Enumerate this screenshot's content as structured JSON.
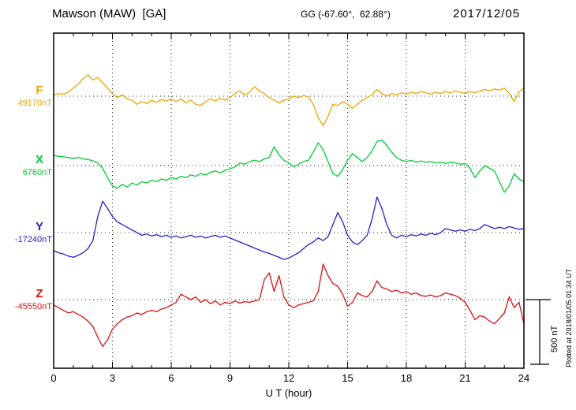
{
  "header": {
    "title": "Mawson (MAW)  [GA]",
    "coords": "GG (-67.60°,  62.88°)",
    "date": "2017/12/05"
  },
  "footer": {
    "xlabel": "U T (hour)"
  },
  "side": {
    "scale_label": "500 nT",
    "plotted_note": "Plotted at 2018/01/05 01:34 UT"
  },
  "chart_data": {
    "type": "line",
    "title": "Mawson (MAW) [GA] magnetogram 2017/12/05",
    "xlabel": "U T (hour)",
    "x_range": [
      0,
      24
    ],
    "x_ticks": [
      0,
      3,
      6,
      9,
      12,
      15,
      18,
      21,
      24
    ],
    "sample_step_hours": 0.25,
    "grid": "dotted vertical lines every 3 h; dotted horizontal baseline per component",
    "legend_position": "left baseline labels",
    "scale_bar_nT": 500,
    "baseline_spacing_nT": 500,
    "series": [
      {
        "name": "F",
        "label": "F",
        "baseline_label": "49170nT",
        "baseline_nT": 49170,
        "color": "#f0a400",
        "offsets_nT": [
          10,
          20,
          15,
          30,
          60,
          90,
          130,
          160,
          120,
          140,
          100,
          60,
          20,
          -10,
          10,
          -20,
          -30,
          -60,
          -40,
          -55,
          -30,
          -45,
          -25,
          -35,
          -20,
          -40,
          -20,
          -50,
          -30,
          -60,
          -70,
          -40,
          -20,
          -35,
          -15,
          -30,
          -10,
          20,
          40,
          10,
          30,
          70,
          40,
          20,
          -10,
          -30,
          -50,
          -30,
          -20,
          0,
          -10,
          5,
          -5,
          -60,
          -160,
          -220,
          -150,
          -60,
          -70,
          -40,
          -60,
          -90,
          -60,
          -30,
          -10,
          10,
          50,
          20,
          0,
          20,
          10,
          25,
          15,
          30,
          20,
          35,
          25,
          15,
          30,
          20,
          35,
          25,
          40,
          30,
          20,
          35,
          25,
          40,
          50,
          40,
          55,
          45,
          60,
          20,
          -40,
          30,
          60
        ]
      },
      {
        "name": "X",
        "label": "X",
        "baseline_label": "6760nT",
        "baseline_nT": 6760,
        "color": "#00cc33",
        "offsets_nT": [
          75,
          70,
          65,
          60,
          55,
          60,
          50,
          45,
          35,
          20,
          -20,
          -90,
          -150,
          -170,
          -140,
          -160,
          -130,
          -145,
          -120,
          -130,
          -110,
          -120,
          -100,
          -110,
          -90,
          -100,
          -80,
          -90,
          -70,
          -80,
          -60,
          -70,
          -50,
          -40,
          -55,
          -35,
          -25,
          -10,
          20,
          10,
          30,
          40,
          30,
          50,
          60,
          140,
          80,
          40,
          20,
          -10,
          10,
          30,
          40,
          100,
          170,
          120,
          30,
          -60,
          -80,
          -30,
          40,
          90,
          60,
          30,
          60,
          110,
          180,
          190,
          150,
          100,
          60,
          40,
          30,
          40,
          25,
          35,
          25,
          30,
          20,
          25,
          15,
          25,
          20,
          10,
          15,
          -20,
          -90,
          -40,
          0,
          -20,
          -40,
          -120,
          -200,
          -150,
          -60,
          -100,
          -120
        ]
      },
      {
        "name": "Y",
        "label": "Y",
        "baseline_label": "-17240nT",
        "baseline_nT": -17240,
        "color": "#2222cc",
        "offsets_nT": [
          -135,
          -150,
          -160,
          -175,
          -185,
          -170,
          -150,
          -120,
          -60,
          120,
          235,
          180,
          120,
          80,
          60,
          40,
          20,
          0,
          -20,
          -10,
          -25,
          -15,
          -30,
          -20,
          -35,
          -25,
          -40,
          -30,
          -20,
          -35,
          -25,
          -40,
          -30,
          -20,
          -35,
          -25,
          -40,
          -55,
          -70,
          -85,
          -100,
          -115,
          -130,
          -145,
          -155,
          -170,
          -185,
          -200,
          -190,
          -170,
          -150,
          -120,
          -90,
          -70,
          -40,
          -60,
          -30,
          60,
          150,
          80,
          -20,
          -70,
          -90,
          -60,
          -20,
          100,
          265,
          180,
          60,
          -20,
          -40,
          -20,
          -30,
          -15,
          -25,
          -10,
          -20,
          -5,
          -15,
          0,
          30,
          20,
          10,
          20,
          10,
          25,
          15,
          30,
          60,
          45,
          30,
          40,
          30,
          45,
          35,
          25,
          30
        ]
      },
      {
        "name": "Z",
        "label": "Z",
        "baseline_label": "-45550nT",
        "baseline_nT": -45550,
        "color": "#dd1111",
        "offsets_nT": [
          -40,
          -60,
          -80,
          -100,
          -90,
          -110,
          -130,
          -160,
          -200,
          -280,
          -350,
          -300,
          -220,
          -180,
          -150,
          -130,
          -120,
          -100,
          -110,
          -90,
          -80,
          -90,
          -70,
          -60,
          -40,
          -20,
          40,
          20,
          0,
          20,
          -20,
          0,
          -30,
          -10,
          -40,
          -20,
          -30,
          -10,
          -25,
          -15,
          -20,
          -10,
          0,
          150,
          200,
          60,
          180,
          20,
          -40,
          -60,
          -40,
          -30,
          -20,
          -10,
          60,
          265,
          180,
          120,
          100,
          40,
          -50,
          -20,
          50,
          30,
          20,
          60,
          140,
          90,
          80,
          60,
          70,
          50,
          60,
          40,
          50,
          30,
          25,
          35,
          20,
          30,
          50,
          40,
          30,
          10,
          -20,
          -80,
          -150,
          -120,
          -130,
          -160,
          -180,
          -140,
          -100,
          20,
          -60,
          -20,
          -180
        ]
      }
    ]
  }
}
